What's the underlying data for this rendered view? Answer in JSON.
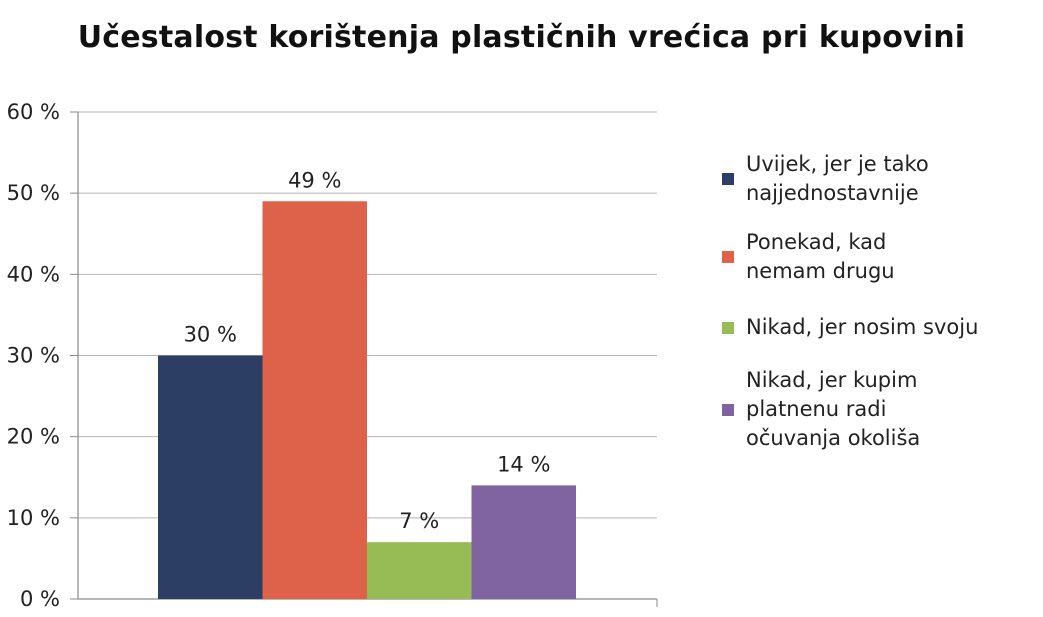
{
  "chart_data": {
    "type": "bar",
    "title": "Učestalost korištenja plastičnih vrećica pri kupovini",
    "xlabel": "",
    "ylabel": "",
    "ylim": [
      0,
      60
    ],
    "yticks": [
      0,
      10,
      20,
      30,
      40,
      50,
      60
    ],
    "ytick_labels": [
      "0 %",
      "10 %",
      "20 %",
      "30 %",
      "40 %",
      "50 %",
      "60 %"
    ],
    "grid": true,
    "legend_position": "right",
    "series": [
      {
        "name": "Uvijek, jer je tako\nnajjednostavnije",
        "value": 30,
        "label": "30 %",
        "color": "#2c3e63"
      },
      {
        "name": "Ponekad, kad\nnemam drugu",
        "value": 49,
        "label": "49 %",
        "color": "#dd6249"
      },
      {
        "name": "Nikad, jer nosim svoju",
        "value": 7,
        "label": "7 %",
        "color": "#97bb55"
      },
      {
        "name": "Nikad, jer kupim\nplatnenu radi\nočuvanja okoliša",
        "value": 14,
        "label": "14 %",
        "color": "#8064a2"
      }
    ]
  }
}
